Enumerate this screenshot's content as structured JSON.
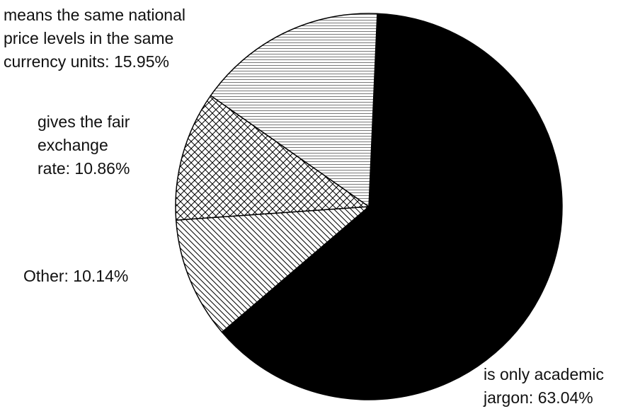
{
  "chart_data": {
    "type": "pie",
    "title": "",
    "slices": [
      {
        "label_lines": [
          "is only academic",
          "jargon: 63.04%"
        ],
        "value": 63.04,
        "fill": "solid",
        "color": "#000000"
      },
      {
        "label_lines": [
          "Other: 10.14%"
        ],
        "value": 10.14,
        "fill": "diagonal-hatch",
        "color": "#000000"
      },
      {
        "label_lines": [
          "gives the fair",
          "exchange",
          "rate: 10.86%"
        ],
        "value": 10.86,
        "fill": "crosshatch",
        "color": "#000000"
      },
      {
        "label_lines": [
          "means the same national",
          "price levels in the same",
          "currency units: 15.95%"
        ],
        "value": 15.95,
        "fill": "horizontal-lines",
        "color": "#000000"
      }
    ]
  }
}
